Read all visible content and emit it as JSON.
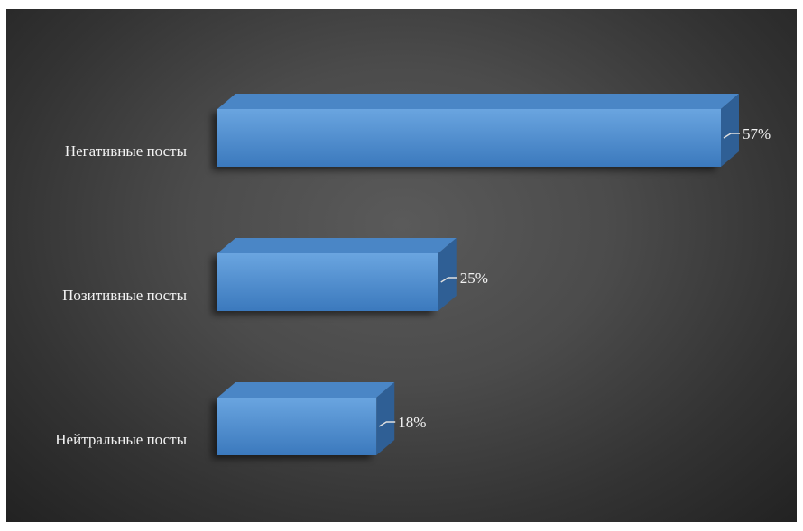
{
  "chart_data": {
    "type": "bar",
    "orientation": "horizontal",
    "style": "3d",
    "title": "",
    "xlabel": "",
    "ylabel": "",
    "categories": [
      "Негативные посты",
      "Позитивные посты",
      "Нейтральные посты"
    ],
    "values": [
      57,
      25,
      18
    ],
    "value_labels": [
      "57%",
      "25%",
      "18%"
    ],
    "unit": "%",
    "xlim": [
      0,
      57
    ],
    "grid": false,
    "legend": "none",
    "colors": {
      "background_center": "#5a5a5a",
      "background_edge": "#222222",
      "bar_front_top": "#6aa5e0",
      "bar_front_bottom": "#3b79bd",
      "bar_top": "#4a86c6",
      "bar_side": "#2f5f95",
      "text": "#f2f2f2",
      "leader_line": "#e0e0e0"
    }
  }
}
